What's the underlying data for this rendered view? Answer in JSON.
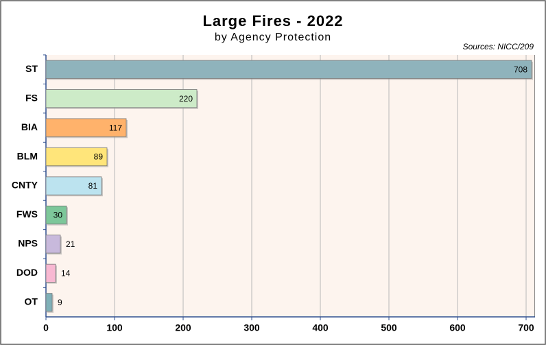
{
  "chart_data": {
    "type": "barh",
    "title": "Large Fires - 2022",
    "subtitle": "by Agency Protection",
    "annotation": "Sources: NICC/209",
    "categories": [
      "ST",
      "FS",
      "BIA",
      "BLM",
      "CNTY",
      "FWS",
      "NPS",
      "DOD",
      "OT"
    ],
    "values": [
      708,
      220,
      117,
      89,
      81,
      30,
      21,
      14,
      9
    ],
    "colors": [
      "#8fb3bc",
      "#cdebc8",
      "#ffb26b",
      "#ffe57a",
      "#bce3ef",
      "#7dc79a",
      "#c8b9dc",
      "#f8b8d2",
      "#7fb0b8"
    ],
    "xlim": [
      0,
      713
    ],
    "xticks": [
      0,
      100,
      200,
      300,
      400,
      500,
      600,
      700
    ],
    "grid": true
  }
}
